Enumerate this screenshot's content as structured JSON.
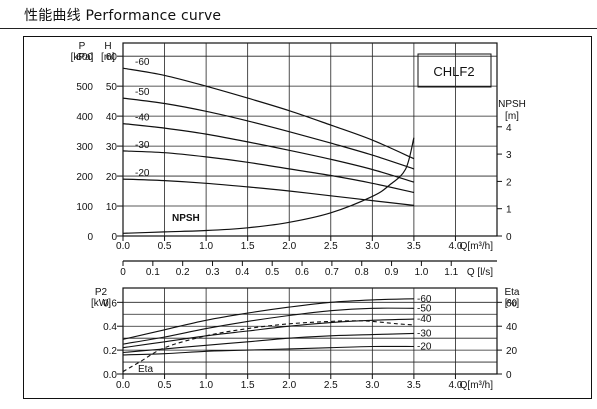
{
  "header": {
    "title": "性能曲线  Performance curve"
  },
  "chart_data": [
    {
      "type": "line",
      "model_label": "CHLF2",
      "x_unit": "Q[m³/h]",
      "x_ticks": [
        "0.0",
        "0.5",
        "1.0",
        "1.5",
        "2.0",
        "2.5",
        "3.0",
        "3.5",
        "4.0"
      ],
      "xlim": [
        0,
        4.0
      ],
      "y_left_outer_label": [
        "P",
        "[kPa]"
      ],
      "y_left_outer_ticks": [
        "0",
        "100",
        "200",
        "300",
        "400",
        "500",
        "600"
      ],
      "y_left_inner_label": [
        "H",
        "[m]"
      ],
      "y_left_inner_ticks": [
        "0",
        "10",
        "20",
        "30",
        "40",
        "50",
        "60"
      ],
      "ylim": [
        0,
        60
      ],
      "y_right_label": [
        "NPSH",
        "[m]"
      ],
      "y_right_ticks": [
        "0",
        "1",
        "2",
        "3",
        "4"
      ],
      "y_right_lim": [
        0,
        4
      ],
      "series": [
        {
          "name": "-60",
          "x": [
            0,
            0.5,
            1.0,
            1.5,
            2.0,
            2.5,
            3.0,
            3.5
          ],
          "y": [
            56.0,
            53.6,
            50.0,
            46.0,
            41.8,
            37.0,
            32.0,
            25.8
          ]
        },
        {
          "name": "-50",
          "x": [
            0,
            0.5,
            1.0,
            1.5,
            2.0,
            2.5,
            3.0,
            3.5
          ],
          "y": [
            46.0,
            44.2,
            41.6,
            38.4,
            34.8,
            31.0,
            27.0,
            22.4
          ]
        },
        {
          "name": "-40",
          "x": [
            0,
            0.5,
            1.0,
            1.5,
            2.0,
            2.5,
            3.0,
            3.5
          ],
          "y": [
            37.5,
            36.0,
            34.0,
            31.4,
            28.6,
            25.6,
            22.2,
            18.0
          ]
        },
        {
          "name": "-30",
          "x": [
            0,
            0.5,
            1.0,
            1.5,
            2.0,
            2.5,
            3.0,
            3.5
          ],
          "y": [
            28.4,
            27.8,
            26.4,
            24.6,
            22.4,
            20.2,
            17.6,
            14.5
          ]
        },
        {
          "name": "-20",
          "x": [
            0,
            0.5,
            1.0,
            1.5,
            2.0,
            2.5,
            3.0,
            3.5
          ],
          "y": [
            19.0,
            18.5,
            17.6,
            16.4,
            15.0,
            13.4,
            11.8,
            10.2
          ]
        }
      ],
      "npsh": {
        "name": "NPSH",
        "x": [
          0,
          0.5,
          1.0,
          1.5,
          2.0,
          2.5,
          3.0,
          3.2,
          3.4,
          3.5
        ],
        "y": [
          0.1,
          0.15,
          0.2,
          0.3,
          0.5,
          0.85,
          1.45,
          1.85,
          2.45,
          3.6
        ]
      }
    },
    {
      "type": "axis",
      "x_ticks": [
        "0",
        "0.1",
        "0.2",
        "0.3",
        "0.4",
        "0.5",
        "0.6",
        "0.7",
        "0.8",
        "0.9",
        "1.0",
        "1.1"
      ],
      "x_unit": "Q [l/s]",
      "xlim": [
        0,
        1.1
      ]
    },
    {
      "type": "line",
      "x_unit": "Q[m³/h]",
      "x_ticks": [
        "0.0",
        "0.5",
        "1.0",
        "1.5",
        "2.0",
        "2.5",
        "3.0",
        "3.5",
        "4.0"
      ],
      "xlim": [
        0,
        4.0
      ],
      "y_left_label": [
        "P2",
        "[kW]"
      ],
      "y_left_ticks": [
        "0.0",
        "0.2",
        "0.4",
        "0.6"
      ],
      "ylim": [
        0,
        0.7
      ],
      "y_right_label": [
        "Eta",
        "[%]"
      ],
      "y_right_ticks": [
        "0",
        "20",
        "40",
        "60"
      ],
      "y_right_lim": [
        0,
        70
      ],
      "series": [
        {
          "name": "-60",
          "x": [
            0,
            0.5,
            1.0,
            1.5,
            2.0,
            2.5,
            3.0,
            3.5
          ],
          "y": [
            0.29,
            0.37,
            0.45,
            0.51,
            0.56,
            0.6,
            0.62,
            0.63
          ]
        },
        {
          "name": "-50",
          "x": [
            0,
            0.5,
            1.0,
            1.5,
            2.0,
            2.5,
            3.0,
            3.5
          ],
          "y": [
            0.25,
            0.31,
            0.38,
            0.44,
            0.49,
            0.53,
            0.55,
            0.55
          ]
        },
        {
          "name": "-40",
          "x": [
            0,
            0.5,
            1.0,
            1.5,
            2.0,
            2.5,
            3.0,
            3.5
          ],
          "y": [
            0.22,
            0.27,
            0.32,
            0.36,
            0.4,
            0.43,
            0.45,
            0.46
          ]
        },
        {
          "name": "-30",
          "x": [
            0,
            0.5,
            1.0,
            1.5,
            2.0,
            2.5,
            3.0,
            3.5
          ],
          "y": [
            0.18,
            0.21,
            0.24,
            0.27,
            0.3,
            0.32,
            0.33,
            0.34
          ]
        },
        {
          "name": "-20",
          "x": [
            0,
            0.5,
            1.0,
            1.5,
            2.0,
            2.5,
            3.0,
            3.5
          ],
          "y": [
            0.16,
            0.17,
            0.19,
            0.2,
            0.21,
            0.22,
            0.23,
            0.23
          ]
        }
      ],
      "eta": {
        "name": "Eta",
        "x": [
          0,
          0.2,
          0.5,
          1.0,
          1.5,
          2.0,
          2.5,
          2.8,
          3.0,
          3.3,
          3.5
        ],
        "y": [
          2,
          10,
          22,
          32,
          38,
          42,
          44,
          44.5,
          44,
          42,
          41
        ]
      }
    }
  ]
}
